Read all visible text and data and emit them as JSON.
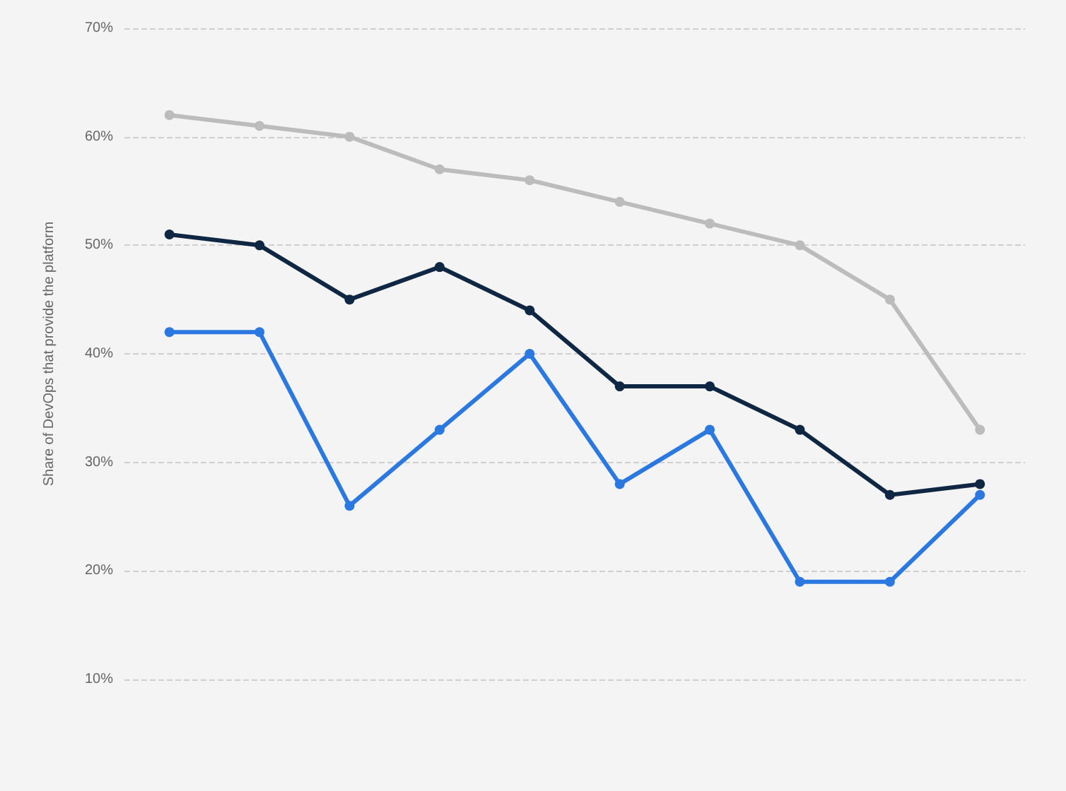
{
  "chart_data": {
    "type": "line",
    "ylabel": "Share of DevOps that provide the platform",
    "categories": [
      null,
      null,
      null,
      null,
      null,
      null,
      null,
      null,
      null,
      null
    ],
    "series": [
      {
        "color": "#bcbcbc",
        "values": [
          62,
          61,
          60,
          57,
          56,
          54,
          52,
          50,
          45,
          33
        ]
      },
      {
        "color": "#0f2742",
        "values": [
          51,
          50,
          45,
          48,
          44,
          37,
          37,
          33,
          27,
          28
        ]
      },
      {
        "color": "#2b78e0",
        "values": [
          42,
          42,
          26,
          33,
          40,
          28,
          33,
          19,
          19,
          27
        ]
      }
    ],
    "ylim": [
      10,
      70
    ],
    "yticks": [
      {
        "value": 10,
        "label": "10%"
      },
      {
        "value": 20,
        "label": "20%"
      },
      {
        "value": 30,
        "label": "30%"
      },
      {
        "value": 40,
        "label": "40%"
      },
      {
        "value": 50,
        "label": "50%"
      },
      {
        "value": 60,
        "label": "60%"
      },
      {
        "value": 70,
        "label": "70%"
      }
    ],
    "grid": "y",
    "marker": "circle",
    "line_style": "solid"
  }
}
